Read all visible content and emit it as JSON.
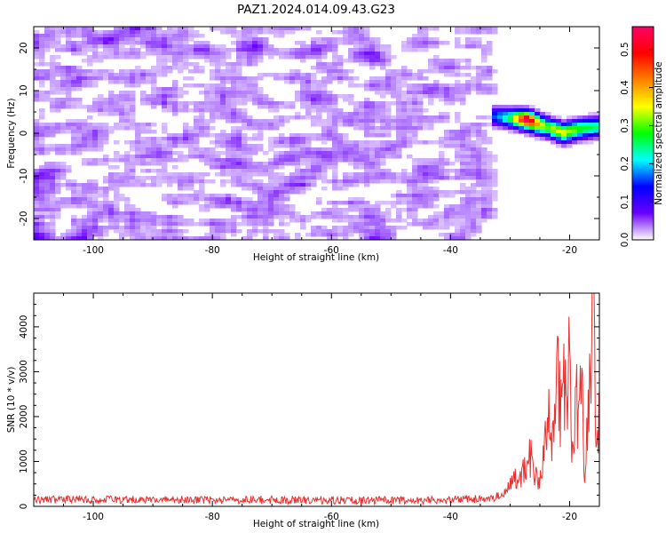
{
  "chart_data": [
    {
      "type": "heatmap",
      "title": "PAZ1.2024.014.09.43.G23",
      "xlabel": "Height of straight line (km)",
      "ylabel": "Frequency (Hz)",
      "xlim": [
        -110,
        -15
      ],
      "ylim": [
        -25,
        25
      ],
      "xticks": [
        -100,
        -80,
        -60,
        -40,
        -20
      ],
      "yticks": [
        -20,
        -10,
        0,
        10,
        20
      ],
      "colorbar": {
        "label": "Normalized spectral amplitude",
        "range": [
          0,
          0.56
        ],
        "ticks": [
          0.0,
          0.1,
          0.2,
          0.3,
          0.4,
          0.5
        ],
        "colormap": [
          "#ffffff",
          "#6a00ff",
          "#0000ff",
          "#00ffff",
          "#00ff00",
          "#ffff00",
          "#ff8000",
          "#ff0000",
          "#ff0066"
        ]
      },
      "noise_region_x": [
        -110,
        -31
      ],
      "signal_track": {
        "x": [
          -33,
          -30,
          -27,
          -24,
          -21,
          -18,
          -15
        ],
        "frequency": [
          4,
          3.5,
          3,
          1.5,
          0,
          1,
          1.5
        ],
        "amplitude": [
          0.15,
          0.25,
          0.55,
          0.3,
          0.35,
          0.3,
          0.25
        ]
      }
    },
    {
      "type": "line",
      "title": "",
      "xlabel": "Height of straight line (km)",
      "ylabel": "SNR (10 * v/v)",
      "xlim": [
        -110,
        -15
      ],
      "ylim": [
        0,
        4750
      ],
      "xticks": [
        -100,
        -80,
        -60,
        -40,
        -20
      ],
      "yticks": [
        0,
        1000,
        2000,
        3000,
        4000
      ],
      "series": [
        {
          "color": "#e8302f",
          "x": [
            -110,
            -100,
            -90,
            -80,
            -70,
            -60,
            -50,
            -40,
            -35,
            -33,
            -32,
            -31,
            -30,
            -29,
            -28,
            -27.5,
            -27,
            -26.5,
            -26,
            -25.5,
            -25,
            -24.5,
            -24,
            -23.5,
            -23,
            -22.5,
            -22,
            -21.5,
            -21,
            -20.5,
            -20,
            -19.5,
            -19,
            -18.5,
            -18,
            -17.5,
            -17,
            -16.5,
            -16,
            -15.5,
            -15
          ],
          "values": [
            110,
            120,
            110,
            105,
            110,
            100,
            100,
            110,
            130,
            170,
            250,
            300,
            450,
            600,
            700,
            900,
            1000,
            1100,
            750,
            600,
            500,
            900,
            1500,
            2200,
            1100,
            1900,
            3300,
            2100,
            3400,
            1800,
            3400,
            1000,
            2500,
            1900,
            2700,
            900,
            2100,
            2600,
            4750,
            1100,
            2000
          ]
        }
      ]
    }
  ]
}
